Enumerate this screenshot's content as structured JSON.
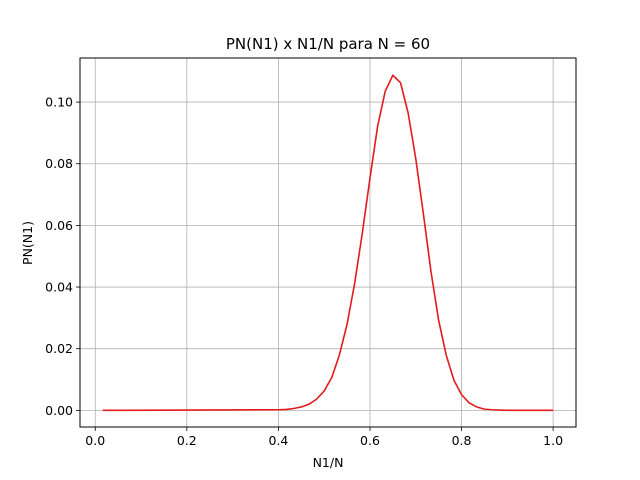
{
  "chart_data": {
    "type": "line",
    "title": "PN(N1) x N1/N para N = 60",
    "xlabel": "N1/N",
    "ylabel": "PN(N1)",
    "xlim": [
      -0.0333,
      1.05
    ],
    "ylim": [
      -0.0054,
      0.1143
    ],
    "xticks": [
      0.0,
      0.2,
      0.4,
      0.6,
      0.8,
      1.0
    ],
    "xtick_labels": [
      "0.0",
      "0.2",
      "0.4",
      "0.6",
      "0.8",
      "1.0"
    ],
    "yticks": [
      0.0,
      0.02,
      0.04,
      0.06,
      0.08,
      0.1
    ],
    "ytick_labels": [
      "0.00",
      "0.02",
      "0.04",
      "0.06",
      "0.08",
      "0.10"
    ],
    "grid": true,
    "legend": "none",
    "series": [
      {
        "color": "#e41a1c",
        "x": [
          0.0167,
          0.4,
          0.4167,
          0.4333,
          0.45,
          0.4667,
          0.4833,
          0.5,
          0.5167,
          0.5333,
          0.55,
          0.5667,
          0.5833,
          0.6,
          0.6167,
          0.6333,
          0.65,
          0.6667,
          0.6833,
          0.7,
          0.7167,
          0.7333,
          0.75,
          0.7667,
          0.7833,
          0.8,
          0.8167,
          0.8333,
          0.85,
          0.8667,
          0.8833,
          0.9,
          0.9167,
          1.0
        ],
        "values": [
          0.0,
          0.0002,
          0.0003,
          0.0006,
          0.0011,
          0.002,
          0.0036,
          0.0063,
          0.0107,
          0.018,
          0.0279,
          0.0413,
          0.0575,
          0.0753,
          0.0921,
          0.1035,
          0.1087,
          0.1063,
          0.0965,
          0.0817,
          0.0637,
          0.045,
          0.0292,
          0.0178,
          0.0098,
          0.0051,
          0.0024,
          0.0011,
          0.0004,
          0.0002,
          0.0001,
          0.0,
          0.0,
          0.0
        ]
      }
    ]
  }
}
